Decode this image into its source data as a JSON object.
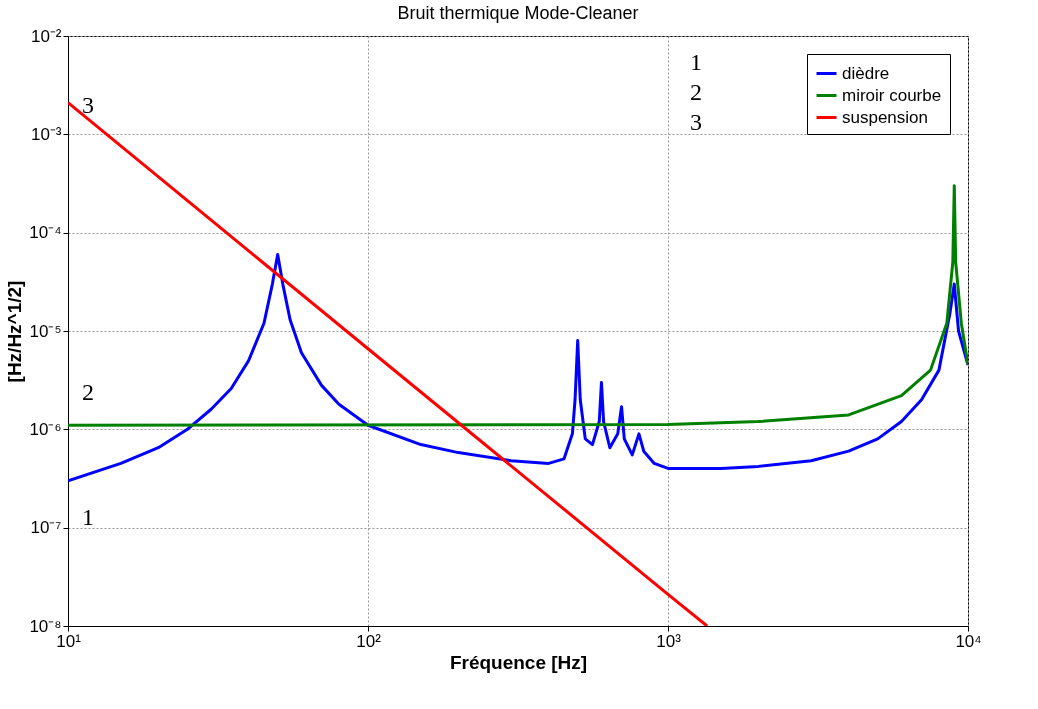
{
  "chart_data": {
    "type": "line",
    "title": "Bruit thermique Mode-Cleaner",
    "xlabel": "Fréquence [Hz]",
    "ylabel": "[Hz/Hz^1/2]",
    "log": "xy",
    "grid": true,
    "legend": "top right",
    "line_style": "solid",
    "marker": "none",
    "xlim": [
      10,
      10000
    ],
    "xticks": [
      {
        "value": 10,
        "label": "10¹"
      },
      {
        "value": 100,
        "label": "10²"
      },
      {
        "value": 1000,
        "label": "10³"
      },
      {
        "value": 10000,
        "label": "10⁴"
      }
    ],
    "ylim": [
      1e-08,
      0.01
    ],
    "yticks": [
      {
        "value": 1e-08,
        "label": "10⁻⁸"
      },
      {
        "value": 1e-07,
        "label": "10⁻⁷"
      },
      {
        "value": 1e-06,
        "label": "10⁻⁶"
      },
      {
        "value": 1e-05,
        "label": "10⁻⁵"
      },
      {
        "value": 0.0001,
        "label": "10⁻⁴"
      },
      {
        "value": 0.001,
        "label": "10⁻³"
      },
      {
        "value": 0.01,
        "label": "10⁻²"
      }
    ],
    "series": [
      {
        "name": "dièdre",
        "color": "#0000ff",
        "x": [
          10,
          15,
          20,
          25,
          30,
          35,
          40,
          45,
          48,
          50,
          52,
          55,
          60,
          70,
          80,
          100,
          150,
          200,
          300,
          400,
          450,
          480,
          490,
          500,
          510,
          530,
          560,
          590,
          600,
          610,
          640,
          680,
          700,
          715,
          760,
          800,
          830,
          900,
          1000,
          1500,
          2000,
          3000,
          4000,
          5000,
          6000,
          7000,
          8000,
          8700,
          9000,
          9300,
          10000
        ],
        "values": [
          3e-07,
          4.5e-07,
          6.5e-07,
          1e-06,
          1.6e-06,
          2.6e-06,
          5e-06,
          1.2e-05,
          3e-05,
          6e-05,
          3e-05,
          1.3e-05,
          6e-06,
          2.8e-06,
          1.8e-06,
          1.1e-06,
          7e-07,
          5.8e-07,
          4.8e-07,
          4.5e-07,
          5e-07,
          9e-07,
          2e-06,
          8e-06,
          2e-06,
          8e-07,
          7e-07,
          1.2e-06,
          3e-06,
          1.2e-06,
          6.5e-07,
          9e-07,
          1.7e-06,
          8e-07,
          5.5e-07,
          9e-07,
          6e-07,
          4.5e-07,
          4e-07,
          4e-07,
          4.2e-07,
          4.8e-07,
          6e-07,
          8e-07,
          1.2e-06,
          2e-06,
          4e-06,
          1.5e-05,
          3e-05,
          1e-05,
          4.5e-06
        ]
      },
      {
        "name": "miroir courbe",
        "color": "#008000",
        "x": [
          10,
          1000,
          2000,
          4000,
          6000,
          7500,
          8500,
          8900,
          9000,
          9100,
          9500,
          10000
        ],
        "values": [
          1.1e-06,
          1.12e-06,
          1.2e-06,
          1.4e-06,
          2.2e-06,
          4e-06,
          1.2e-05,
          5e-05,
          0.0003,
          5e-05,
          1.2e-05,
          4.5e-06
        ]
      },
      {
        "name": "suspension",
        "color": "#ff0000",
        "x": [
          10,
          100,
          1000,
          1350
        ],
        "values": [
          0.0021,
          6.6e-06,
          2.1e-08,
          1e-08
        ]
      }
    ],
    "annotations": [
      "3",
      "2",
      "1",
      "1",
      "2",
      "3"
    ]
  }
}
